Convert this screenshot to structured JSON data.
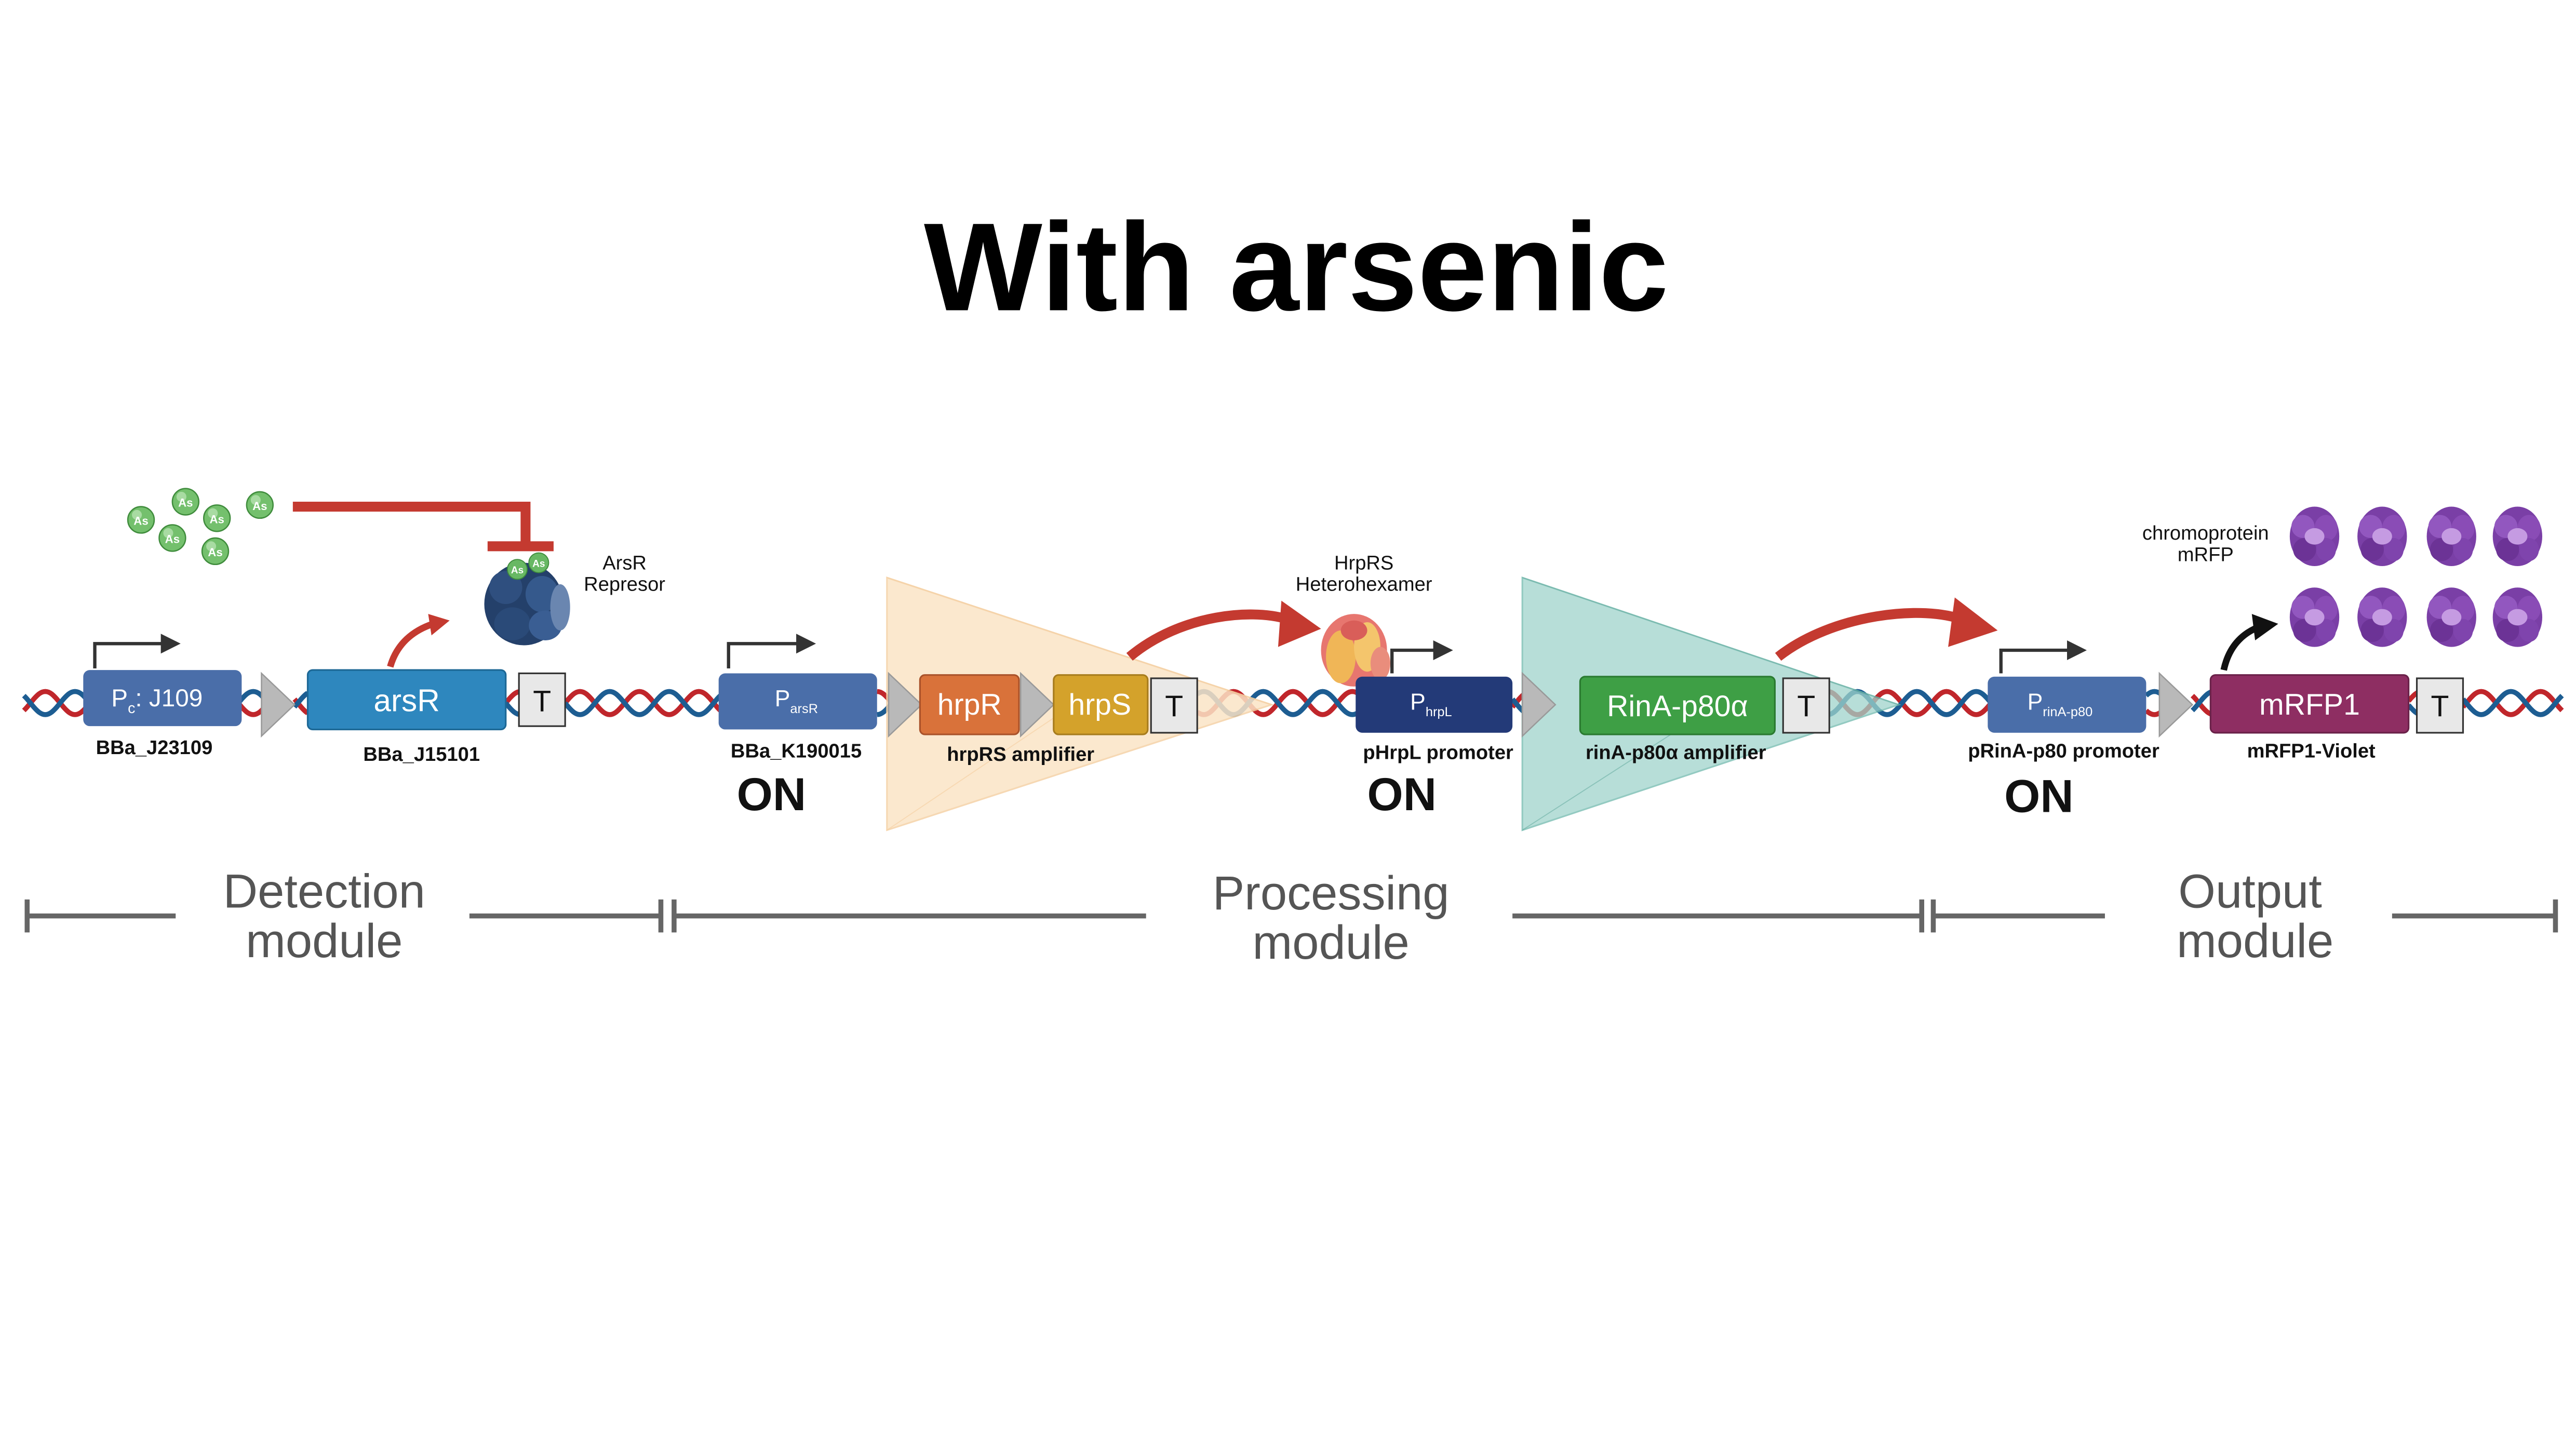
{
  "title": "With arsenic",
  "arsenic_symbol": "As",
  "terminator_label": "T",
  "on_label": "ON",
  "colors": {
    "dna_red": "#c0262b",
    "dna_blue": "#1d5d92",
    "promoter": "#4a6ea9",
    "promoter_dark": "#233a78",
    "arsR": "#2e87be",
    "hrpR": "#d9723a",
    "hrpS": "#d4a22b",
    "rinA": "#3e9f45",
    "mrfp": "#8e2e62",
    "arrow_red": "#c43a30",
    "amp_orange": "#fbe7cc",
    "amp_teal": "#a8d8d0",
    "module_line": "#666666"
  },
  "parts": {
    "pc_promoter": {
      "label_main": "P",
      "label_sub": "c",
      "label_rest": ": J109",
      "caption": "BBa_J23109"
    },
    "arsR": {
      "label": "arsR",
      "caption": "BBa_J15101"
    },
    "parsR": {
      "label_main": "P",
      "label_sub": "arsR",
      "caption": "BBa_K190015"
    },
    "hrpR": {
      "label": "hrpR"
    },
    "hrpS": {
      "label": "hrpS"
    },
    "hrpRS_amplifier": {
      "caption": "hrpRS amplifier"
    },
    "phrpL": {
      "label_main": "P",
      "label_sub": "hrpL",
      "caption": "pHrpL promoter"
    },
    "rinA": {
      "label": "RinA-p80α",
      "caption": "rinA-p80α amplifier"
    },
    "prinA": {
      "label_main": "P",
      "label_sub": "rinA-p80",
      "caption": "pRinA-p80 promoter"
    },
    "mrfp1": {
      "label": "mRFP1",
      "caption": "mRFP1-Violet"
    }
  },
  "proteins": {
    "arsR_repressor": {
      "line1": "ArsR",
      "line2": "Represor"
    },
    "hrpRS_hexamer": {
      "line1": "HrpRS",
      "line2": "Heterohexamer"
    },
    "chromoprotein": {
      "line1": "chromoprotein",
      "line2": "mRFP"
    }
  },
  "modules": {
    "detection": {
      "line1": "Detection",
      "line2": "module"
    },
    "processing": {
      "line1": "Processing",
      "line2": "module"
    },
    "output": {
      "line1": "Output",
      "line2": "module"
    }
  }
}
